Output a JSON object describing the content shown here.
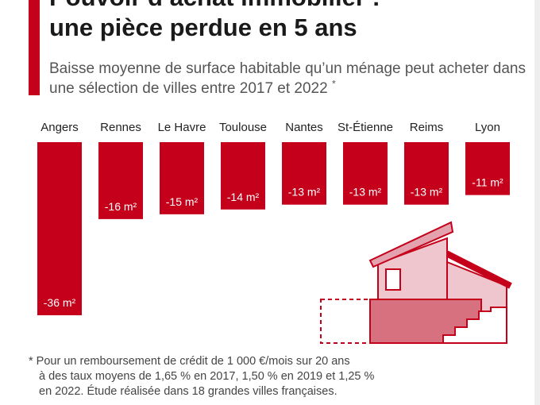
{
  "title": {
    "line1": "Pouvoir d’achat immobilier :",
    "line2": "une pièce perdue en 5 ans"
  },
  "subtitle": {
    "text": "Baisse moyenne de surface habitable qu’un ménage peut acheter dans une sélection de villes entre 2017 et 2022",
    "marker": "*"
  },
  "footnote": {
    "line1": "* Pour un remboursement de crédit de 1 000 €/mois sur 20 ans",
    "line2": "à des taux moyens de 1,65 % en 2017, 1,50 % en 2019 et 1,25 %",
    "line3": "en 2022. Étude réalisée dans 18 grandes villes françaises."
  },
  "colors": {
    "bar": "#c4001a",
    "house_light": "#efc6ce",
    "house_mid": "#e3a2ad",
    "house_dark": "#d7707f"
  },
  "illustration": "house-icon",
  "chart_data": {
    "type": "bar",
    "orientation": "vertical-downward",
    "categories": [
      "Angers",
      "Rennes",
      "Le Havre",
      "Toulouse",
      "Nantes",
      "St-Étienne",
      "Reims",
      "Lyon"
    ],
    "values": [
      -36,
      -16,
      -15,
      -14,
      -13,
      -13,
      -13,
      -11
    ],
    "data_labels": [
      "-36 m²",
      "-16 m²",
      "-15 m²",
      "-14 m²",
      "-13 m²",
      "-13 m²",
      "-13 m²",
      "-11 m²"
    ],
    "unit": "m²",
    "ylim": [
      -36,
      0
    ],
    "grid": false,
    "legend": "none"
  }
}
